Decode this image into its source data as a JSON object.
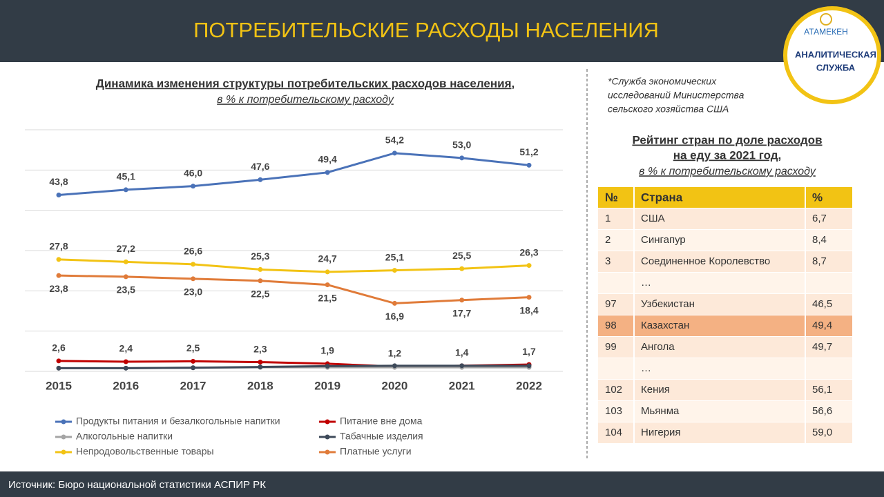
{
  "header": {
    "title": "ПОТРЕБИТЕЛЬСКИЕ РАСХОДЫ НАСЕЛЕНИЯ"
  },
  "logo": {
    "brand": "АТАМЕКЕН",
    "lines": [
      "АНАЛИТИЧЕСКАЯ",
      "СЛУЖБА"
    ]
  },
  "chart_data": {
    "type": "line",
    "title": "Динамика изменения структуры потребительских расходов населения,",
    "subtitle": "в % к потребительскому расходу",
    "categories": [
      "2015",
      "2016",
      "2017",
      "2018",
      "2019",
      "2020",
      "2021",
      "2022"
    ],
    "ylim": [
      0,
      60
    ],
    "yticks": [
      0,
      10,
      20,
      30,
      40,
      50,
      60
    ],
    "grid": true,
    "legend": "bottom",
    "series": [
      {
        "name": "Продукты питания и безалкогольные напитки",
        "color": "#4a72b8",
        "values": [
          43.8,
          45.1,
          46.0,
          47.6,
          49.4,
          54.2,
          53.0,
          51.2
        ],
        "value_labels": [
          "43,8",
          "45,1",
          "46,0",
          "47,6",
          "49,4",
          "54,2",
          "53,0",
          "51,2"
        ]
      },
      {
        "name": "Питание вне дома",
        "color": "#c00000",
        "values": [
          2.6,
          2.4,
          2.5,
          2.3,
          1.9,
          1.2,
          1.4,
          1.7
        ],
        "value_labels": [
          "2,6",
          "2,4",
          "2,5",
          "2,3",
          "1,9",
          "1,2",
          "1,4",
          "1,7"
        ]
      },
      {
        "name": "Алкогольные напитки",
        "color": "#a5a5a5",
        "values": [
          0.8,
          0.8,
          0.9,
          1.0,
          1.0,
          1.0,
          1.0,
          1.0
        ]
      },
      {
        "name": "Табачные изделия",
        "color": "#3e4a5a",
        "values": [
          0.8,
          0.8,
          0.9,
          1.1,
          1.3,
          1.4,
          1.4,
          1.4
        ]
      },
      {
        "name": "Непродовольственные товары",
        "color": "#f2c314",
        "values": [
          27.8,
          27.2,
          26.6,
          25.3,
          24.7,
          25.1,
          25.5,
          26.3
        ],
        "value_labels": [
          "27,8",
          "27,2",
          "26,6",
          "25,3",
          "24,7",
          "25,1",
          "25,5",
          "26,3"
        ]
      },
      {
        "name": "Платные услуги",
        "color": "#e07b39",
        "values": [
          23.8,
          23.5,
          23.0,
          22.5,
          21.5,
          16.9,
          17.7,
          18.4
        ],
        "value_labels": [
          "23,8",
          "23,5",
          "23,0",
          "22,5",
          "21,5",
          "16,9",
          "17,7",
          "18,4"
        ]
      }
    ]
  },
  "note": [
    "*Служба экономических",
    "исследований Министерства",
    "сельского хозяйства США"
  ],
  "table": {
    "title": [
      "Рейтинг стран по доле расходов",
      "на еду за 2021 год,"
    ],
    "subtitle": "в % к потребительскому расходу",
    "columns": [
      "№",
      "Страна",
      "%"
    ],
    "rows": [
      [
        "1",
        "США",
        "6,7"
      ],
      [
        "2",
        "Сингапур",
        "8,4"
      ],
      [
        "3",
        "Соединенное Королевство",
        "8,7"
      ],
      [
        "",
        "…",
        ""
      ],
      [
        "97",
        "Узбекистан",
        "46,5"
      ],
      [
        "98",
        "Казахстан",
        "49,4"
      ],
      [
        "99",
        "Ангола",
        "49,7"
      ],
      [
        "",
        "…",
        ""
      ],
      [
        "102",
        "Кения",
        "56,1"
      ],
      [
        "103",
        "Мьянма",
        "56,6"
      ],
      [
        "104",
        "Нигерия",
        "59,0"
      ]
    ]
  },
  "footer": {
    "source": "Источник: Бюро национальной  статистики  АСПИР РК"
  }
}
